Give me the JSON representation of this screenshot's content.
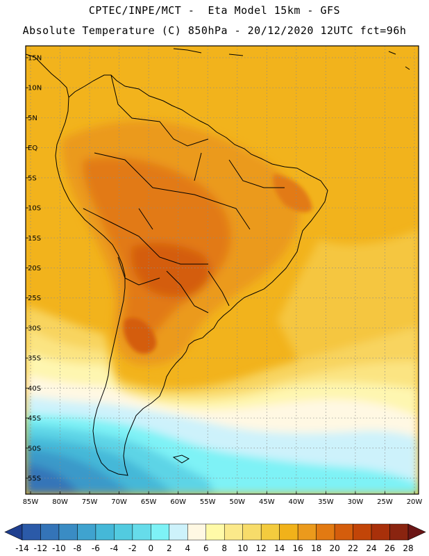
{
  "title": {
    "line1": "CPTEC/INPE/MCT -  Eta Model 15km - GFS",
    "line2": "Absolute Temperature (C) 850hPa - 20/12/2020 12UTC fct=96h"
  },
  "map": {
    "lat_labels": [
      "15N",
      "10N",
      "5N",
      "EQ",
      "5S",
      "10S",
      "15S",
      "20S",
      "25S",
      "30S",
      "35S",
      "40S",
      "45S",
      "50S",
      "55S"
    ],
    "lon_labels": [
      "85W",
      "80W",
      "75W",
      "70W",
      "65W",
      "60W",
      "55W",
      "50W",
      "45W",
      "40W",
      "35W",
      "30W",
      "25W",
      "20W"
    ],
    "field_regions": [
      "temperature-field-12-14",
      "temperature-field-10-12",
      "temperature-field-8-10",
      "temperature-field-6-8",
      "temperature-field-4-6",
      "temperature-field-2-4",
      "temperature-field-0-2",
      "temperature-field-minus2-0",
      "temperature-field-minus4-minus2",
      "temperature-field-minus6-minus4",
      "temperature-field-16-18",
      "temperature-field-18-20",
      "temperature-field-20-22",
      "temperature-field-22-24"
    ]
  },
  "colorbar": {
    "labels": [
      "-14",
      "-12",
      "-10",
      "-8",
      "-6",
      "-4",
      "-2",
      "0",
      "2",
      "4",
      "6",
      "8",
      "10",
      "12",
      "14",
      "16",
      "18",
      "20",
      "22",
      "24",
      "26",
      "28"
    ],
    "colors": [
      "#1f3f8f",
      "#2b5aa8",
      "#3474b8",
      "#3a8cc4",
      "#3fa3cf",
      "#45b8d8",
      "#52cbe0",
      "#66dcea",
      "#7ef2f6",
      "#cdf2fb",
      "#fff8e3",
      "#fffaa8",
      "#fbe98a",
      "#f7dc6a",
      "#f3cb3e",
      "#f1b21a",
      "#eb9a1c",
      "#e27a12",
      "#d45d0c",
      "#c24508",
      "#a8300a",
      "#8a2410",
      "#6b1616"
    ]
  }
}
